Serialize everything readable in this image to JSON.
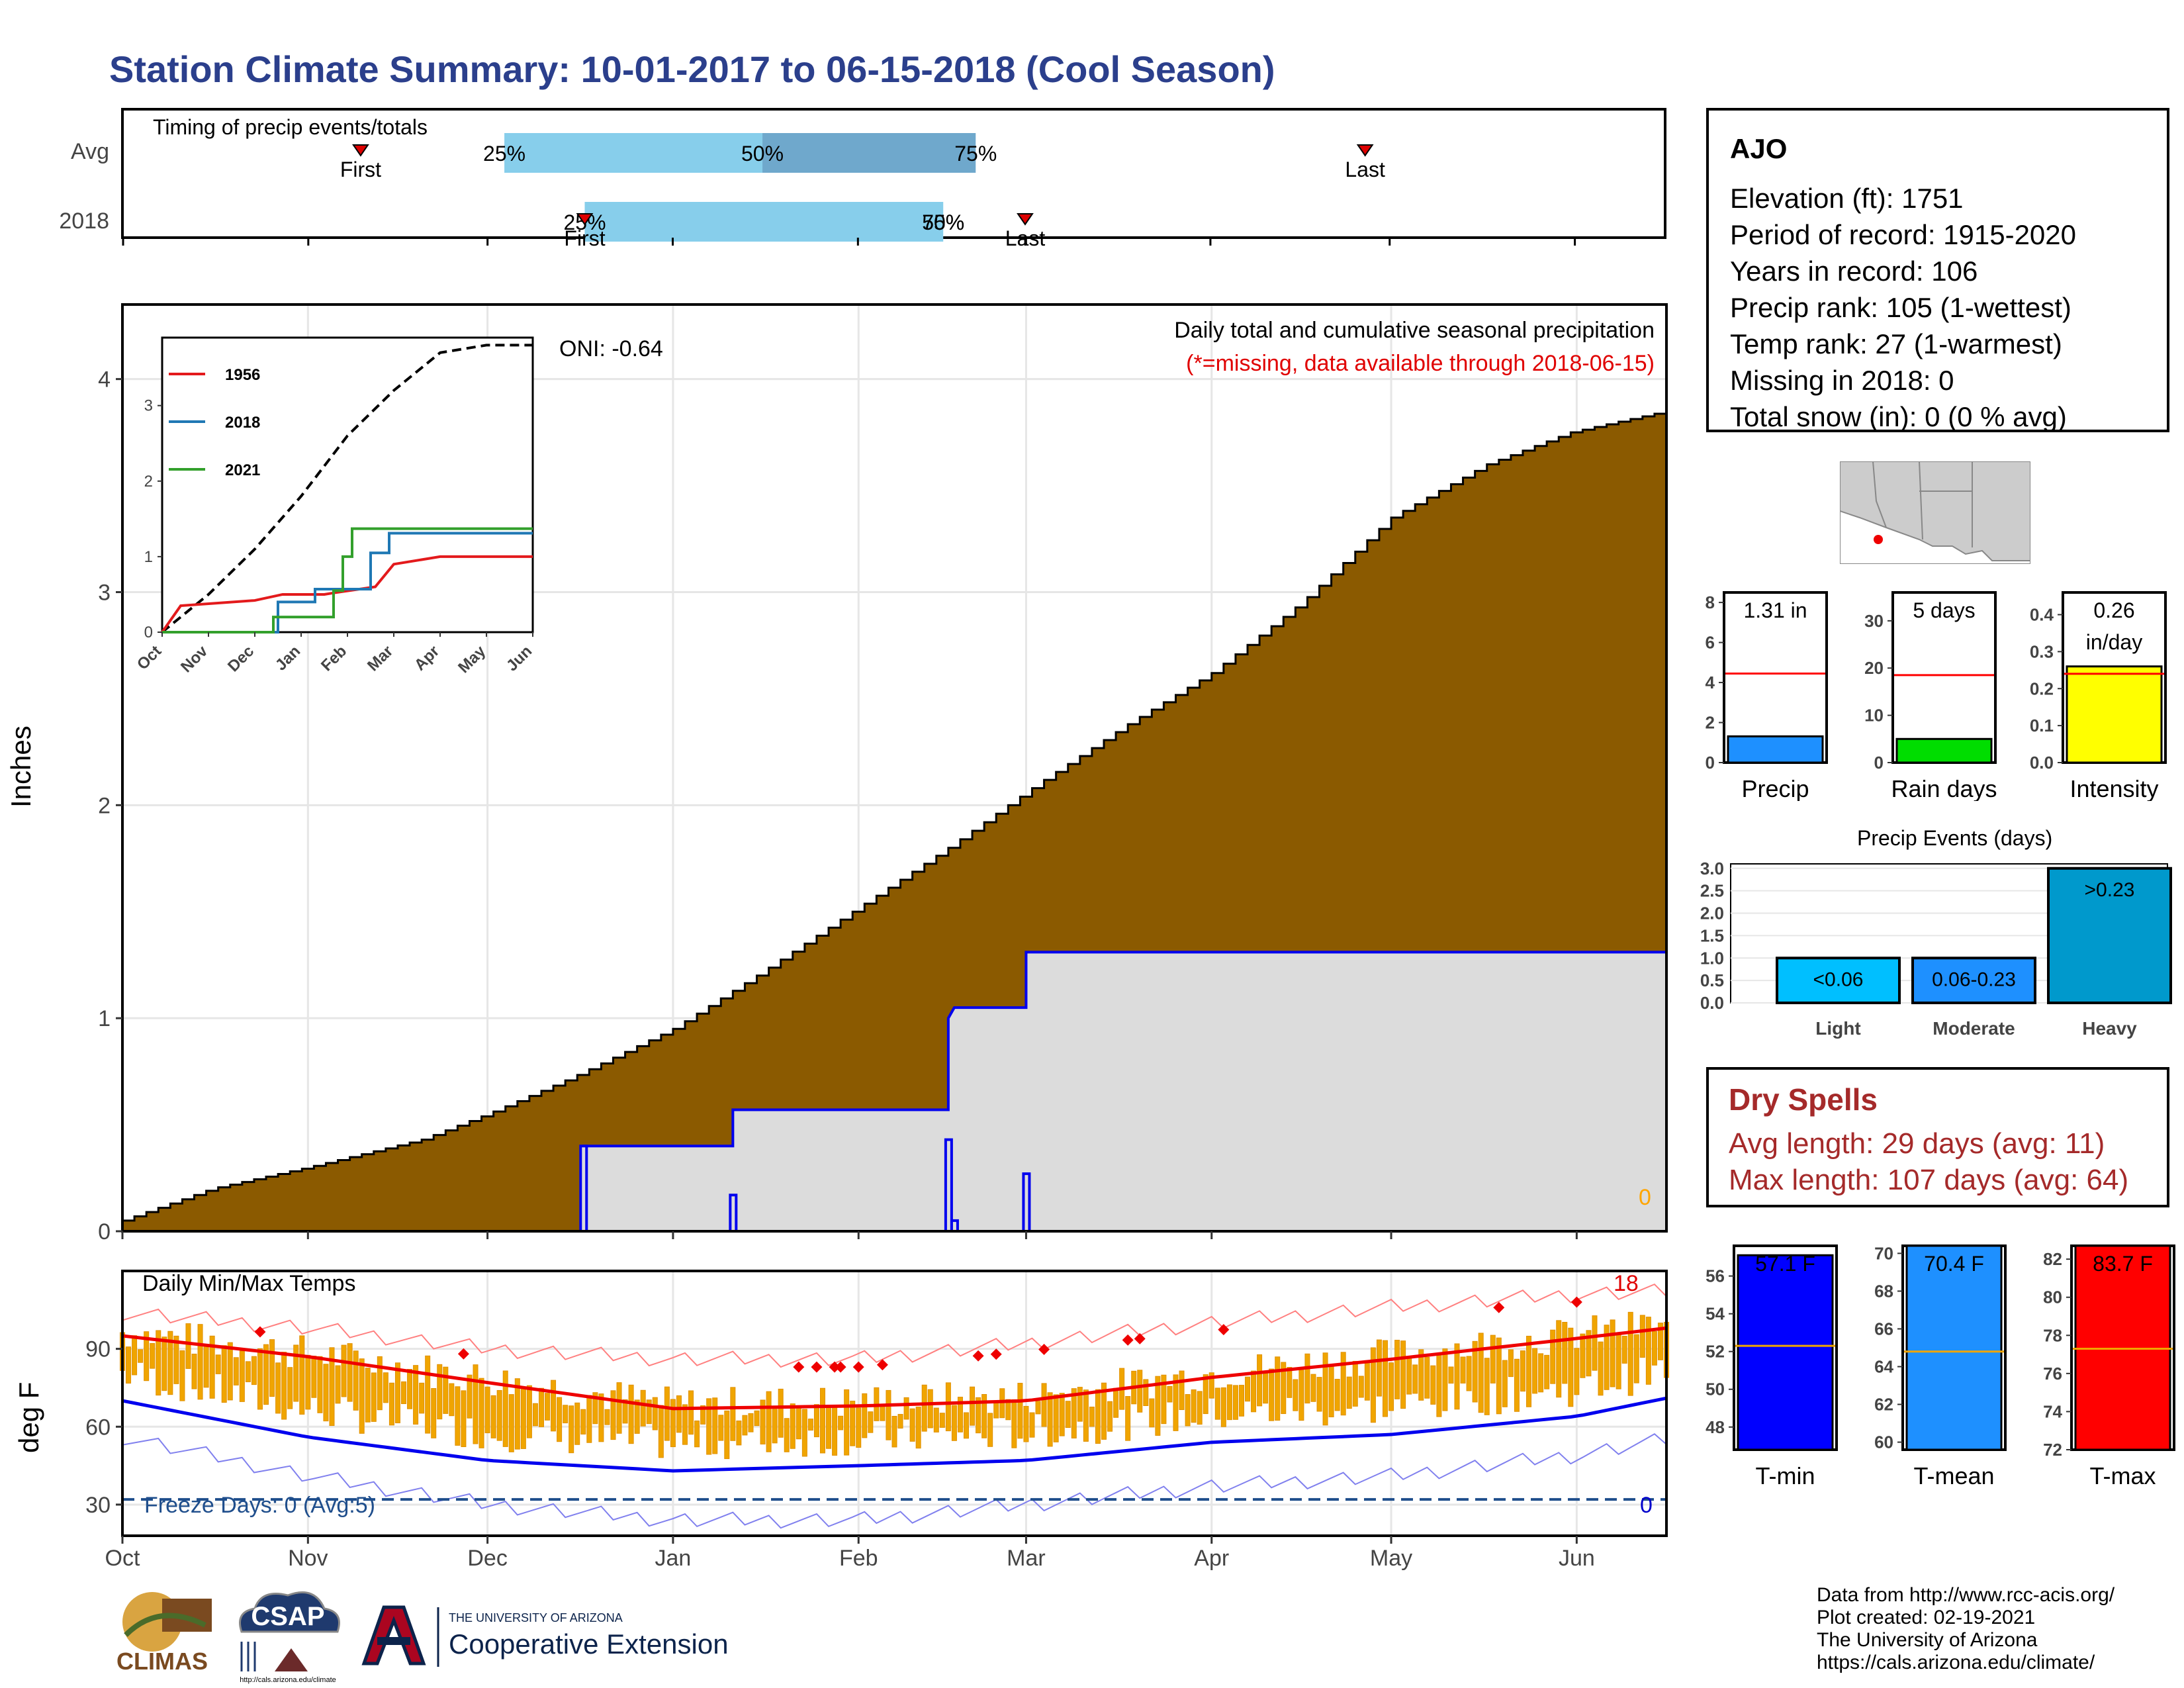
{
  "title": "Station Climate Summary: 10-01-2017 to 06-15-2018 (Cool Season)",
  "timing": {
    "label": "Timing of precip events/totals",
    "rows": [
      {
        "name": "Avg",
        "first": 0.155,
        "last": 0.805,
        "p25": 0.248,
        "p50": 0.415,
        "p75": 0.553
      },
      {
        "name": "2018",
        "first": 0.3,
        "last": 0.585,
        "p25": 0.3,
        "p50": 0.532,
        "p75": 0.532
      }
    ],
    "first_label": "First",
    "last_label": "Last",
    "pct_labels": [
      "25%",
      "50%",
      "75%"
    ],
    "colors": {
      "light": "#87ceeb",
      "dark": "#6fa8cc",
      "marker": "#dd0000"
    }
  },
  "main_chart": {
    "ylabel": "Inches",
    "annotation_title": "Daily total and cumulative seasonal precipitation",
    "annotation_missing": "(*=missing, data available through 2018-06-15)",
    "oni": "ONI: -0.64",
    "zero_marker": "0",
    "months": [
      "Oct",
      "Nov",
      "Dec",
      "Jan",
      "Feb",
      "Mar",
      "Apr",
      "May",
      "Jun"
    ],
    "y_ticks": [
      0,
      1,
      2,
      3,
      4
    ],
    "ylim": [
      0,
      4.35
    ],
    "days": 258,
    "colors": {
      "avg_fill": "#8b5a00",
      "obs_fill": "#dcdcdc",
      "obs_line": "#0000ee",
      "grid": "#e6e6e6"
    }
  },
  "chart_data": [
    {
      "type": "area",
      "name": "cumulative precipitation",
      "x_unit": "day of season (0 = Oct 1)",
      "avg_cumulative": [
        [
          0,
          0.05
        ],
        [
          15,
          0.2
        ],
        [
          31,
          0.3
        ],
        [
          50,
          0.43
        ],
        [
          61,
          0.55
        ],
        [
          75,
          0.72
        ],
        [
          92,
          0.95
        ],
        [
          106,
          1.2
        ],
        [
          122,
          1.5
        ],
        [
          138,
          1.8
        ],
        [
          153,
          2.1
        ],
        [
          168,
          2.38
        ],
        [
          182,
          2.62
        ],
        [
          197,
          2.95
        ],
        [
          212,
          3.35
        ],
        [
          228,
          3.6
        ],
        [
          242,
          3.75
        ],
        [
          258,
          3.85
        ],
        [
          274,
          3.9
        ],
        [
          289,
          3.93
        ],
        [
          304,
          3.95
        ],
        [
          319,
          3.96
        ],
        [
          334,
          3.97
        ]
      ],
      "observed_cumulative": [
        [
          0,
          0
        ],
        [
          77,
          0
        ],
        [
          77,
          0.4
        ],
        [
          102,
          0.4
        ],
        [
          102,
          0.57
        ],
        [
          138,
          0.57
        ],
        [
          138,
          1.0
        ],
        [
          139,
          1.05
        ],
        [
          151,
          1.05
        ],
        [
          151,
          1.31
        ],
        [
          258,
          1.31
        ]
      ],
      "daily_bars": [
        [
          77,
          0.4
        ],
        [
          102,
          0.17
        ],
        [
          138,
          0.43
        ],
        [
          139,
          0.05
        ],
        [
          151,
          0.27
        ]
      ],
      "ylim": [
        0,
        4.35
      ]
    },
    {
      "type": "line",
      "name": "inset cumulative comparison",
      "x_categories": [
        "Oct",
        "Nov",
        "Dec",
        "Jan",
        "Feb",
        "Mar",
        "Apr",
        "May",
        "Jun"
      ],
      "y_ticks": [
        0,
        1,
        2,
        3
      ],
      "ylim": [
        0,
        3.9
      ],
      "series": [
        {
          "name": "avg",
          "color": "#000000",
          "dashed": true,
          "values": [
            [
              0,
              0
            ],
            [
              1,
              0.5
            ],
            [
              2,
              1.1
            ],
            [
              3,
              1.8
            ],
            [
              4,
              2.6
            ],
            [
              5,
              3.2
            ],
            [
              6,
              3.7
            ],
            [
              7,
              4.0
            ],
            [
              8,
              4.0
            ]
          ]
        },
        {
          "name": "1956",
          "color": "#e31a1c",
          "values": [
            [
              0,
              0
            ],
            [
              0.4,
              0.35
            ],
            [
              2,
              0.42
            ],
            [
              2.6,
              0.5
            ],
            [
              3.5,
              0.5
            ],
            [
              3.7,
              0.52
            ],
            [
              4.6,
              0.6
            ],
            [
              5,
              0.9
            ],
            [
              6,
              1.0
            ],
            [
              8,
              1.0
            ]
          ]
        },
        {
          "name": "2018",
          "color": "#1f78b4",
          "values": [
            [
              0,
              0
            ],
            [
              2.5,
              0
            ],
            [
              2.5,
              0.4
            ],
            [
              3.3,
              0.4
            ],
            [
              3.3,
              0.57
            ],
            [
              4.5,
              0.57
            ],
            [
              4.5,
              1.05
            ],
            [
              4.9,
              1.05
            ],
            [
              4.9,
              1.31
            ],
            [
              8,
              1.31
            ]
          ]
        },
        {
          "name": "2021",
          "color": "#33a02c",
          "values": [
            [
              0,
              0
            ],
            [
              2.4,
              0
            ],
            [
              2.4,
              0.2
            ],
            [
              3.7,
              0.2
            ],
            [
              3.7,
              0.55
            ],
            [
              3.9,
              0.55
            ],
            [
              3.9,
              1.0
            ],
            [
              4.1,
              1.0
            ],
            [
              4.1,
              1.37
            ],
            [
              8,
              1.37
            ]
          ]
        }
      ]
    },
    {
      "type": "bar",
      "name": "seasonal totals",
      "panels": [
        {
          "label": "Precip",
          "value": 1.31,
          "avg": 4.45,
          "ylim": [
            0,
            8.5
          ],
          "ticks": [
            0,
            2,
            4,
            6,
            8
          ],
          "color": "#1e90ff",
          "text": "1.31 in"
        },
        {
          "label": "Rain days",
          "value": 5,
          "avg": 18.5,
          "ylim": [
            0,
            36
          ],
          "ticks": [
            0,
            10,
            20,
            30
          ],
          "color": "#00dd00",
          "text": "5 days"
        },
        {
          "label": "Intensity",
          "value": 0.26,
          "avg": 0.24,
          "ylim": [
            0,
            0.46
          ],
          "ticks": [
            0.0,
            0.1,
            0.2,
            0.3,
            0.4
          ],
          "color": "#ffff00",
          "text": "0.26 in/day"
        }
      ]
    },
    {
      "type": "bar",
      "name": "Precip Events (days)",
      "categories": [
        "Light",
        "Moderate",
        "Heavy"
      ],
      "bar_labels": [
        "<0.06",
        "0.06-0.23",
        ">0.23"
      ],
      "values": [
        1,
        1,
        3
      ],
      "ylim": [
        0,
        3.1
      ],
      "y_ticks": [
        "0.0",
        "0.5",
        "1.0",
        "1.5",
        "2.0",
        "2.5",
        "3.0"
      ]
    },
    {
      "type": "bar",
      "name": "seasonal temperature",
      "panels": [
        {
          "label": "T-min",
          "value": 57.1,
          "avg": 52.3,
          "ylim": [
            46.8,
            57.6
          ],
          "ticks": [
            48,
            50,
            52,
            54,
            56
          ],
          "color": "#0000ff",
          "text": "57.1 F"
        },
        {
          "label": "T-mean",
          "value": 70.4,
          "avg": 64.8,
          "ylim": [
            59.6,
            70.4
          ],
          "ticks": [
            60,
            62,
            64,
            66,
            68,
            70
          ],
          "color": "#1e90ff",
          "text": "70.4 F"
        },
        {
          "label": "T-max",
          "value": 83.7,
          "avg": 77.3,
          "ylim": [
            72,
            82.7
          ],
          "ticks": [
            72,
            74,
            76,
            78,
            80,
            82
          ],
          "color": "#ff0000",
          "text": "83.7 F"
        }
      ]
    },
    {
      "type": "line",
      "name": "Daily Min/Max Temps",
      "ylabel": "deg F",
      "y_ticks": [
        30,
        60,
        90
      ],
      "ylim": [
        18,
        120
      ],
      "freeze_line": 32,
      "avg_max": [
        [
          0,
          95
        ],
        [
          31,
          87
        ],
        [
          61,
          77
        ],
        [
          92,
          67
        ],
        [
          123,
          68
        ],
        [
          151,
          70
        ],
        [
          182,
          79
        ],
        [
          212,
          86
        ],
        [
          243,
          94
        ],
        [
          258,
          98
        ]
      ],
      "avg_min": [
        [
          0,
          70
        ],
        [
          31,
          56
        ],
        [
          61,
          47
        ],
        [
          92,
          43
        ],
        [
          123,
          45
        ],
        [
          151,
          47
        ],
        [
          182,
          54
        ],
        [
          212,
          57
        ],
        [
          243,
          64
        ],
        [
          258,
          71
        ]
      ],
      "record_max": [
        [
          0,
          104
        ],
        [
          31,
          98
        ],
        [
          61,
          90
        ],
        [
          92,
          86
        ],
        [
          123,
          86
        ],
        [
          151,
          92
        ],
        [
          182,
          100
        ],
        [
          212,
          106
        ],
        [
          243,
          111
        ],
        [
          258,
          112
        ]
      ],
      "record_min": [
        [
          0,
          56
        ],
        [
          31,
          41
        ],
        [
          61,
          30
        ],
        [
          92,
          24
        ],
        [
          123,
          24
        ],
        [
          151,
          30
        ],
        [
          182,
          37
        ],
        [
          212,
          41
        ],
        [
          243,
          49
        ],
        [
          258,
          55
        ]
      ]
    }
  ],
  "temps": {
    "title": "Daily Min/Max Temps",
    "freeze_text": "Freeze Days: 0 (Avg:5)",
    "count_top": "18",
    "count_bottom": "0"
  },
  "station": {
    "name": "AJO",
    "lines": [
      "Elevation (ft): 1751",
      "Period of record: 1915-2020",
      "Years in record: 106",
      "Precip rank: 105 (1-wettest)",
      "Temp rank: 27 (1-warmest)",
      "Missing in 2018: 0",
      "Total snow (in): 0 (0 % avg)"
    ]
  },
  "events_title": "Precip Events (days)",
  "dry_spells": {
    "title": "Dry Spells",
    "avg": "Avg length: 29 days (avg: 11)",
    "max": "Max length: 107 days (avg: 64)"
  },
  "footer": {
    "credits": [
      "Data from http://www.rcc-acis.org/",
      "Plot created: 02-19-2021",
      "The University of Arizona",
      "https://cals.arizona.edu/climate/"
    ],
    "logo_climas": "CLIMAS",
    "logo_csap": "CSAP",
    "logo_csap_url": "http://cals.arizona.edu/climate",
    "ua_small": "THE UNIVERSITY OF ARIZONA",
    "ua_big": "Cooperative Extension"
  }
}
